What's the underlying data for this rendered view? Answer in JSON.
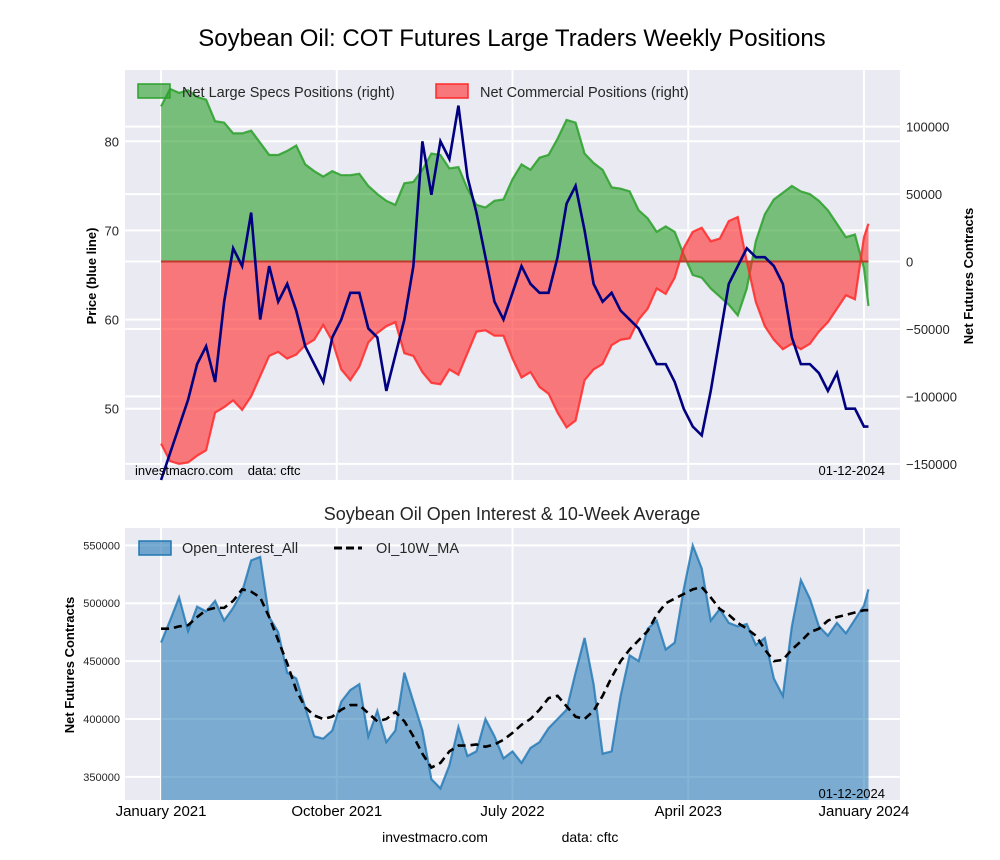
{
  "chart_data": [
    {
      "type": "area",
      "title": "Soybean Oil: COT Futures Large Traders Weekly Positions",
      "ylabel_left": "Price (blue line)",
      "ylabel_right": "Net Futures Contracts",
      "left_ticks": [
        "50",
        "60",
        "70",
        "80"
      ],
      "left_tick_values": [
        50,
        60,
        70,
        80
      ],
      "right_ticks": [
        "−150000",
        "−100000",
        "−50000",
        "0",
        "50000",
        "100000"
      ],
      "right_tick_values": [
        -150000,
        -100000,
        -50000,
        0,
        50000,
        100000
      ],
      "ylim_left": [
        42,
        88
      ],
      "ylim_right": [
        -162000,
        142000
      ],
      "x_ticks": [
        "January 2021",
        "October 2021",
        "July 2022",
        "April 2023",
        "January 2024"
      ],
      "x_tick_positions_weeks": [
        0,
        39,
        78,
        117,
        156
      ],
      "x_range_weeks": [
        -8,
        164
      ],
      "legend": [
        {
          "label": "Net Large Specs Positions (right)",
          "color": "#2ca02c"
        },
        {
          "label": "Net Commercial Positions (right)",
          "color": "#ff2a2a"
        }
      ],
      "annotation_left": "investmacro.com    data: cftc",
      "annotation_right": "01-12-2024",
      "weeks": [
        0,
        2,
        4,
        6,
        8,
        10,
        12,
        14,
        16,
        18,
        20,
        22,
        24,
        26,
        28,
        30,
        32,
        34,
        36,
        38,
        40,
        42,
        44,
        46,
        48,
        50,
        52,
        54,
        56,
        58,
        60,
        62,
        64,
        66,
        68,
        70,
        72,
        74,
        76,
        78,
        80,
        82,
        84,
        86,
        88,
        90,
        92,
        94,
        96,
        98,
        100,
        102,
        104,
        106,
        108,
        110,
        112,
        114,
        116,
        118,
        120,
        122,
        124,
        126,
        128,
        130,
        132,
        134,
        136,
        138,
        140,
        142,
        144,
        146,
        148,
        150,
        152,
        154,
        156,
        157
      ],
      "series": [
        {
          "name": "Net Large Specs Positions",
          "axis": "right",
          "color": "#2ca02c",
          "values": [
            115000,
            128000,
            125000,
            127000,
            122000,
            120000,
            104000,
            103000,
            95000,
            95000,
            97000,
            88000,
            79000,
            79000,
            82000,
            86000,
            72000,
            67000,
            63000,
            67000,
            64000,
            64000,
            65000,
            56000,
            50000,
            45000,
            42000,
            58000,
            59000,
            68000,
            80000,
            79000,
            69000,
            70000,
            54000,
            42000,
            40000,
            45000,
            46000,
            61000,
            72000,
            68000,
            77000,
            79000,
            91000,
            105000,
            103000,
            80000,
            73000,
            68000,
            55000,
            54000,
            52000,
            38000,
            32000,
            22000,
            26000,
            22000,
            5000,
            -10000,
            -12000,
            -20000,
            -26000,
            -32000,
            -40000,
            -20000,
            15000,
            35000,
            46000,
            51000,
            56000,
            52000,
            50000,
            45000,
            38000,
            28000,
            18000,
            20000,
            -5000,
            -33000
          ]
        },
        {
          "name": "Net Commercial Positions",
          "axis": "right",
          "color": "#ff2a2a",
          "values": [
            -135000,
            -148000,
            -150000,
            -149000,
            -144000,
            -140000,
            -112000,
            -108000,
            -103000,
            -110000,
            -100000,
            -85000,
            -70000,
            -67000,
            -72000,
            -69000,
            -62000,
            -58000,
            -47000,
            -59000,
            -80000,
            -88000,
            -78000,
            -60000,
            -53000,
            -48000,
            -45000,
            -68000,
            -70000,
            -82000,
            -90000,
            -91000,
            -80000,
            -84000,
            -68000,
            -52000,
            -51000,
            -55000,
            -55000,
            -72000,
            -86000,
            -82000,
            -93000,
            -98000,
            -112000,
            -123000,
            -118000,
            -88000,
            -80000,
            -76000,
            -62000,
            -58000,
            -57000,
            -43000,
            -35000,
            -20000,
            -24000,
            -12000,
            10000,
            22000,
            25000,
            15000,
            17000,
            30000,
            33000,
            0,
            -30000,
            -48000,
            -58000,
            -65000,
            -61000,
            -65000,
            -61000,
            -52000,
            -45000,
            -35000,
            -25000,
            -28000,
            18000,
            28000
          ]
        },
        {
          "name": "Price",
          "axis": "left",
          "color": "#000080",
          "values": [
            42,
            45,
            48,
            51,
            55,
            57,
            53,
            62,
            68,
            66,
            72,
            60,
            66,
            62,
            64,
            61,
            57,
            55,
            53,
            58,
            60,
            63,
            63,
            59,
            58,
            52,
            56,
            60,
            66,
            80,
            74,
            80,
            78,
            84,
            76,
            72,
            67,
            62,
            60,
            63,
            66,
            64,
            63,
            63,
            67,
            73,
            75,
            70,
            64,
            62,
            63,
            61,
            60,
            59,
            57,
            55,
            55,
            53,
            50,
            48,
            47,
            52,
            58,
            64,
            66,
            68,
            67,
            67,
            66,
            64,
            58,
            55,
            55,
            54,
            52,
            54,
            50,
            50,
            48,
            48
          ]
        }
      ]
    },
    {
      "type": "area",
      "title": "Soybean Oil Open Interest & 10-Week Average",
      "ylabel": "Net Futures Contracts",
      "y_ticks": [
        "350000",
        "400000",
        "450000",
        "500000",
        "550000"
      ],
      "y_tick_values": [
        350000,
        400000,
        450000,
        500000,
        550000
      ],
      "ylim": [
        330000,
        565000
      ],
      "x_ticks": [
        "January 2021",
        "October 2021",
        "July 2022",
        "April 2023",
        "January 2024"
      ],
      "x_tick_positions_weeks": [
        0,
        39,
        78,
        117,
        156
      ],
      "x_range_weeks": [
        -8,
        164
      ],
      "legend": [
        {
          "label": "Open_Interest_All",
          "color": "#1f77b4"
        },
        {
          "label": "OI_10W_MA",
          "color": "#000000"
        }
      ],
      "annotation_right": "01-12-2024",
      "weeks": [
        0,
        2,
        4,
        6,
        8,
        10,
        12,
        14,
        16,
        18,
        20,
        22,
        24,
        26,
        28,
        30,
        32,
        34,
        36,
        38,
        40,
        42,
        44,
        46,
        48,
        50,
        52,
        54,
        56,
        58,
        60,
        62,
        64,
        66,
        68,
        70,
        72,
        74,
        76,
        78,
        80,
        82,
        84,
        86,
        88,
        90,
        92,
        94,
        96,
        98,
        100,
        102,
        104,
        106,
        108,
        110,
        112,
        114,
        116,
        118,
        120,
        122,
        124,
        126,
        128,
        130,
        132,
        134,
        136,
        138,
        140,
        142,
        144,
        146,
        148,
        150,
        152,
        154,
        156,
        157
      ],
      "series": [
        {
          "name": "Open_Interest_All",
          "color": "#1f77b4",
          "values": [
            466000,
            485000,
            505000,
            476000,
            497000,
            493000,
            502000,
            485000,
            496000,
            510000,
            537000,
            540000,
            488000,
            475000,
            440000,
            435000,
            410000,
            385000,
            383000,
            390000,
            415000,
            425000,
            430000,
            385000,
            407000,
            380000,
            390000,
            440000,
            415000,
            390000,
            348000,
            340000,
            360000,
            393000,
            368000,
            372000,
            400000,
            385000,
            366000,
            372000,
            362000,
            375000,
            380000,
            392000,
            400000,
            408000,
            440000,
            470000,
            430000,
            370000,
            372000,
            420000,
            455000,
            450000,
            478000,
            485000,
            460000,
            466000,
            512000,
            550000,
            530000,
            485000,
            495000,
            483000,
            480000,
            482000,
            464000,
            470000,
            435000,
            420000,
            480000,
            520000,
            504000,
            480000,
            472000,
            483000,
            474000,
            486000,
            498000,
            512000
          ]
        },
        {
          "name": "OI_10W_MA",
          "color": "#000000",
          "values": [
            478000,
            478000,
            480000,
            481000,
            488000,
            494000,
            496000,
            496000,
            502000,
            512000,
            510000,
            505000,
            488000,
            468000,
            448000,
            425000,
            410000,
            403000,
            400000,
            402000,
            408000,
            412000,
            412000,
            405000,
            398000,
            400000,
            406000,
            398000,
            385000,
            370000,
            358000,
            362000,
            372000,
            377000,
            377000,
            378000,
            376000,
            378000,
            382000,
            388000,
            395000,
            400000,
            408000,
            418000,
            420000,
            411000,
            402000,
            400000,
            407000,
            420000,
            436000,
            450000,
            460000,
            468000,
            476000,
            490000,
            500000,
            504000,
            508000,
            512000,
            514000,
            505000,
            495000,
            490000,
            483000,
            478000,
            472000,
            460000,
            450000,
            451000,
            460000,
            467000,
            475000,
            478000,
            485000,
            488000,
            490000,
            492000,
            494000,
            494000
          ]
        }
      ]
    }
  ],
  "footer": {
    "site": "investmacro.com",
    "data": "data: cftc"
  }
}
